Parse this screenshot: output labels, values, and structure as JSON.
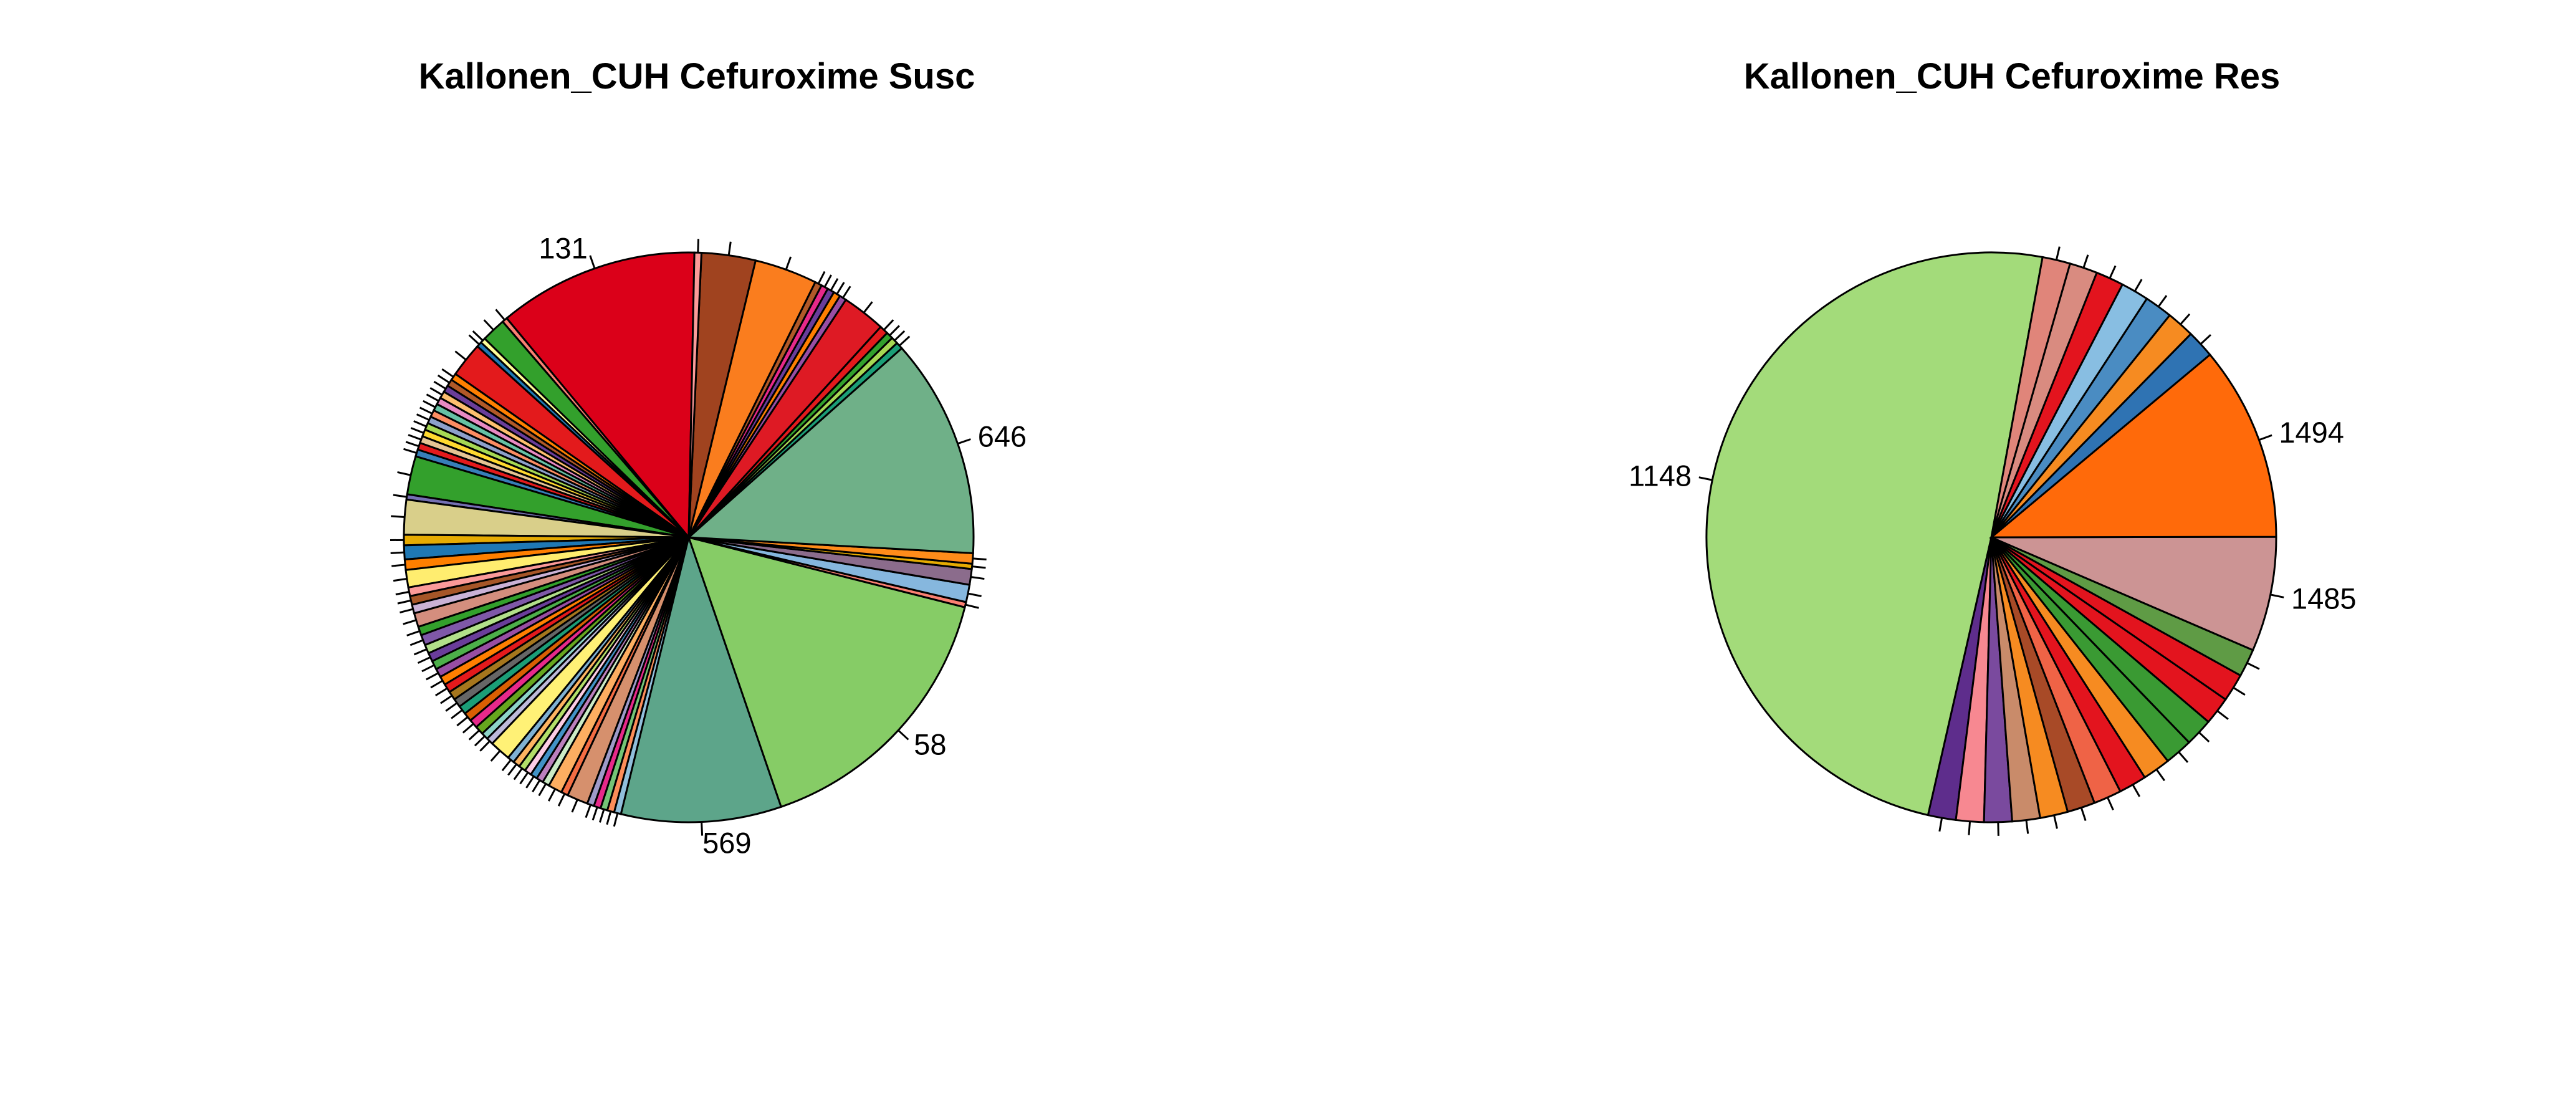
{
  "chart_data": [
    {
      "type": "pie",
      "title": "Kallonen_CUH Cefuroxime Susc",
      "labeled_slices": [
        "131",
        "58",
        "569",
        "646"
      ],
      "slices": [
        {
          "label": "131",
          "value": 11.5,
          "color": "#DB0019"
        },
        {
          "label": "",
          "value": 0.3,
          "color": "#FB8072"
        },
        {
          "label": "",
          "value": 1.4,
          "color": "#33A02C"
        },
        {
          "label": "",
          "value": 0.3,
          "color": "#FFFF99"
        },
        {
          "label": "",
          "value": 0.3,
          "color": "#1F78B4"
        },
        {
          "label": "",
          "value": 2.0,
          "color": "#E31A1C"
        },
        {
          "label": "",
          "value": 0.4,
          "color": "#FF7F00"
        },
        {
          "label": "",
          "value": 0.4,
          "color": "#B15928"
        },
        {
          "label": "",
          "value": 0.4,
          "color": "#6A3D9A"
        },
        {
          "label": "",
          "value": 0.4,
          "color": "#FDBF6F"
        },
        {
          "label": "",
          "value": 0.4,
          "color": "#E78AC3"
        },
        {
          "label": "",
          "value": 0.4,
          "color": "#66C2A5"
        },
        {
          "label": "",
          "value": 0.4,
          "color": "#FC8D62"
        },
        {
          "label": "",
          "value": 0.4,
          "color": "#8DA0CB"
        },
        {
          "label": "",
          "value": 0.4,
          "color": "#A6D854"
        },
        {
          "label": "",
          "value": 0.4,
          "color": "#FFD92F"
        },
        {
          "label": "",
          "value": 0.4,
          "color": "#E5C494"
        },
        {
          "label": "",
          "value": 0.4,
          "color": "#E41A1C"
        },
        {
          "label": "",
          "value": 0.4,
          "color": "#377EB8"
        },
        {
          "label": "",
          "value": 2.2,
          "color": "#33A02C"
        },
        {
          "label": "",
          "value": 0.3,
          "color": "#7570B3"
        },
        {
          "label": "",
          "value": 2.0,
          "color": "#D9CF8A"
        },
        {
          "label": "",
          "value": 0.6,
          "color": "#E6AB02"
        },
        {
          "label": "",
          "value": 0.8,
          "color": "#1F78B4"
        },
        {
          "label": "",
          "value": 0.6,
          "color": "#FF7F00"
        },
        {
          "label": "",
          "value": 1.0,
          "color": "#FFED6F"
        },
        {
          "label": "",
          "value": 0.5,
          "color": "#FB9A99"
        },
        {
          "label": "",
          "value": 0.5,
          "color": "#A65628"
        },
        {
          "label": "",
          "value": 0.5,
          "color": "#CAB2D6"
        },
        {
          "label": "",
          "value": 0.8,
          "color": "#D48E7E"
        },
        {
          "label": "",
          "value": 0.5,
          "color": "#33A02C"
        },
        {
          "label": "",
          "value": 0.6,
          "color": "#7F58A8"
        },
        {
          "label": "",
          "value": 0.5,
          "color": "#B2DF8A"
        },
        {
          "label": "",
          "value": 0.5,
          "color": "#6A3D9A"
        },
        {
          "label": "",
          "value": 0.5,
          "color": "#4DAF4A"
        },
        {
          "label": "",
          "value": 0.5,
          "color": "#984EA3"
        },
        {
          "label": "",
          "value": 0.5,
          "color": "#FF7F00"
        },
        {
          "label": "",
          "value": 0.5,
          "color": "#E41A1C"
        },
        {
          "label": "",
          "value": 0.5,
          "color": "#A6761D"
        },
        {
          "label": "",
          "value": 0.5,
          "color": "#666666"
        },
        {
          "label": "",
          "value": 0.5,
          "color": "#1B9E77"
        },
        {
          "label": "",
          "value": 0.5,
          "color": "#D95F02"
        },
        {
          "label": "",
          "value": 0.5,
          "color": "#E7298A"
        },
        {
          "label": "",
          "value": 0.5,
          "color": "#66A61E"
        },
        {
          "label": "",
          "value": 0.4,
          "color": "#8DD3C7"
        },
        {
          "label": "",
          "value": 0.4,
          "color": "#BEBADA"
        },
        {
          "label": "",
          "value": 1.2,
          "color": "#FFF176"
        },
        {
          "label": "",
          "value": 0.4,
          "color": "#80B1D3"
        },
        {
          "label": "",
          "value": 0.4,
          "color": "#FDB462"
        },
        {
          "label": "",
          "value": 0.4,
          "color": "#B3DE69"
        },
        {
          "label": "",
          "value": 0.4,
          "color": "#FCCDE5"
        },
        {
          "label": "",
          "value": 0.4,
          "color": "#4292C6"
        },
        {
          "label": "",
          "value": 0.4,
          "color": "#BC80BD"
        },
        {
          "label": "",
          "value": 0.4,
          "color": "#CCEBC5"
        },
        {
          "label": "",
          "value": 0.8,
          "color": "#FDAE61"
        },
        {
          "label": "",
          "value": 0.4,
          "color": "#F46D43"
        },
        {
          "label": "",
          "value": 1.2,
          "color": "#D6906D"
        },
        {
          "label": "",
          "value": 0.4,
          "color": "#9E9AC8"
        },
        {
          "label": "",
          "value": 0.4,
          "color": "#E7298A"
        },
        {
          "label": "",
          "value": 0.4,
          "color": "#74C476"
        },
        {
          "label": "",
          "value": 0.4,
          "color": "#FC8D59"
        },
        {
          "label": "",
          "value": 0.4,
          "color": "#91BFDB"
        },
        {
          "label": "569",
          "value": 9.2,
          "color": "#5DA58A"
        },
        {
          "label": "58",
          "value": 16.0,
          "color": "#86CC66"
        },
        {
          "label": "",
          "value": 0.3,
          "color": "#FB8072"
        },
        {
          "label": "",
          "value": 1.0,
          "color": "#86B7DE"
        },
        {
          "label": "",
          "value": 0.9,
          "color": "#8B6C8C"
        },
        {
          "label": "",
          "value": 0.3,
          "color": "#E6AB02"
        },
        {
          "label": "",
          "value": 0.6,
          "color": "#FF8C1A"
        },
        {
          "label": "646",
          "value": 12.6,
          "color": "#6FB088"
        },
        {
          "label": "",
          "value": 0.4,
          "color": "#1B9E77"
        },
        {
          "label": "",
          "value": 0.4,
          "color": "#A6D854"
        },
        {
          "label": "",
          "value": 0.4,
          "color": "#33A02C"
        },
        {
          "label": "",
          "value": 0.5,
          "color": "#E31A1C"
        },
        {
          "label": "",
          "value": 2.5,
          "color": "#DE1A24"
        },
        {
          "label": "",
          "value": 0.4,
          "color": "#984EA3"
        },
        {
          "label": "",
          "value": 0.4,
          "color": "#FF7F00"
        },
        {
          "label": "",
          "value": 0.4,
          "color": "#6A3D9A"
        },
        {
          "label": "",
          "value": 0.4,
          "color": "#E7298A"
        },
        {
          "label": "",
          "value": 0.4,
          "color": "#B15928"
        },
        {
          "label": "",
          "value": 3.6,
          "color": "#FA7D1E"
        },
        {
          "label": "",
          "value": 3.1,
          "color": "#A0431F"
        },
        {
          "label": "",
          "value": 0.4,
          "color": "#FB9A99"
        }
      ]
    },
    {
      "type": "pie",
      "title": "Kallonen_CUH Cefuroxime Res",
      "labeled_slices": [
        "1148",
        "1494",
        "1485"
      ],
      "slices": [
        {
          "label": "1148",
          "value": 50.0,
          "color": "#A3DB7A"
        },
        {
          "label": "",
          "value": 1.6,
          "color": "#5E2D8C"
        },
        {
          "label": "",
          "value": 1.6,
          "color": "#F78891"
        },
        {
          "label": "",
          "value": 1.6,
          "color": "#7A4A9E"
        },
        {
          "label": "",
          "value": 1.6,
          "color": "#C98B6A"
        },
        {
          "label": "",
          "value": 1.6,
          "color": "#F68B21"
        },
        {
          "label": "",
          "value": 1.6,
          "color": "#A84A27"
        },
        {
          "label": "",
          "value": 1.6,
          "color": "#EF6346"
        },
        {
          "label": "",
          "value": 1.6,
          "color": "#E3141E"
        },
        {
          "label": "",
          "value": 1.6,
          "color": "#F68B21"
        },
        {
          "label": "",
          "value": 1.6,
          "color": "#3A9A33"
        },
        {
          "label": "",
          "value": 1.6,
          "color": "#3A9A33"
        },
        {
          "label": "",
          "value": 1.6,
          "color": "#E3141E"
        },
        {
          "label": "",
          "value": 1.6,
          "color": "#E3141E"
        },
        {
          "label": "",
          "value": 1.6,
          "color": "#5F9B45"
        },
        {
          "label": "1485",
          "value": 6.6,
          "color": "#CC9494"
        },
        {
          "label": "1494",
          "value": 11.2,
          "color": "#FF6A0A"
        },
        {
          "label": "",
          "value": 1.6,
          "color": "#2F73B3"
        },
        {
          "label": "",
          "value": 1.6,
          "color": "#F68B21"
        },
        {
          "label": "",
          "value": 1.6,
          "color": "#4A8CC2"
        },
        {
          "label": "",
          "value": 1.6,
          "color": "#88BEE2"
        },
        {
          "label": "",
          "value": 1.6,
          "color": "#E3141E"
        },
        {
          "label": "",
          "value": 1.6,
          "color": "#D98B80"
        },
        {
          "label": "",
          "value": 1.6,
          "color": "#E0857A"
        }
      ]
    }
  ]
}
